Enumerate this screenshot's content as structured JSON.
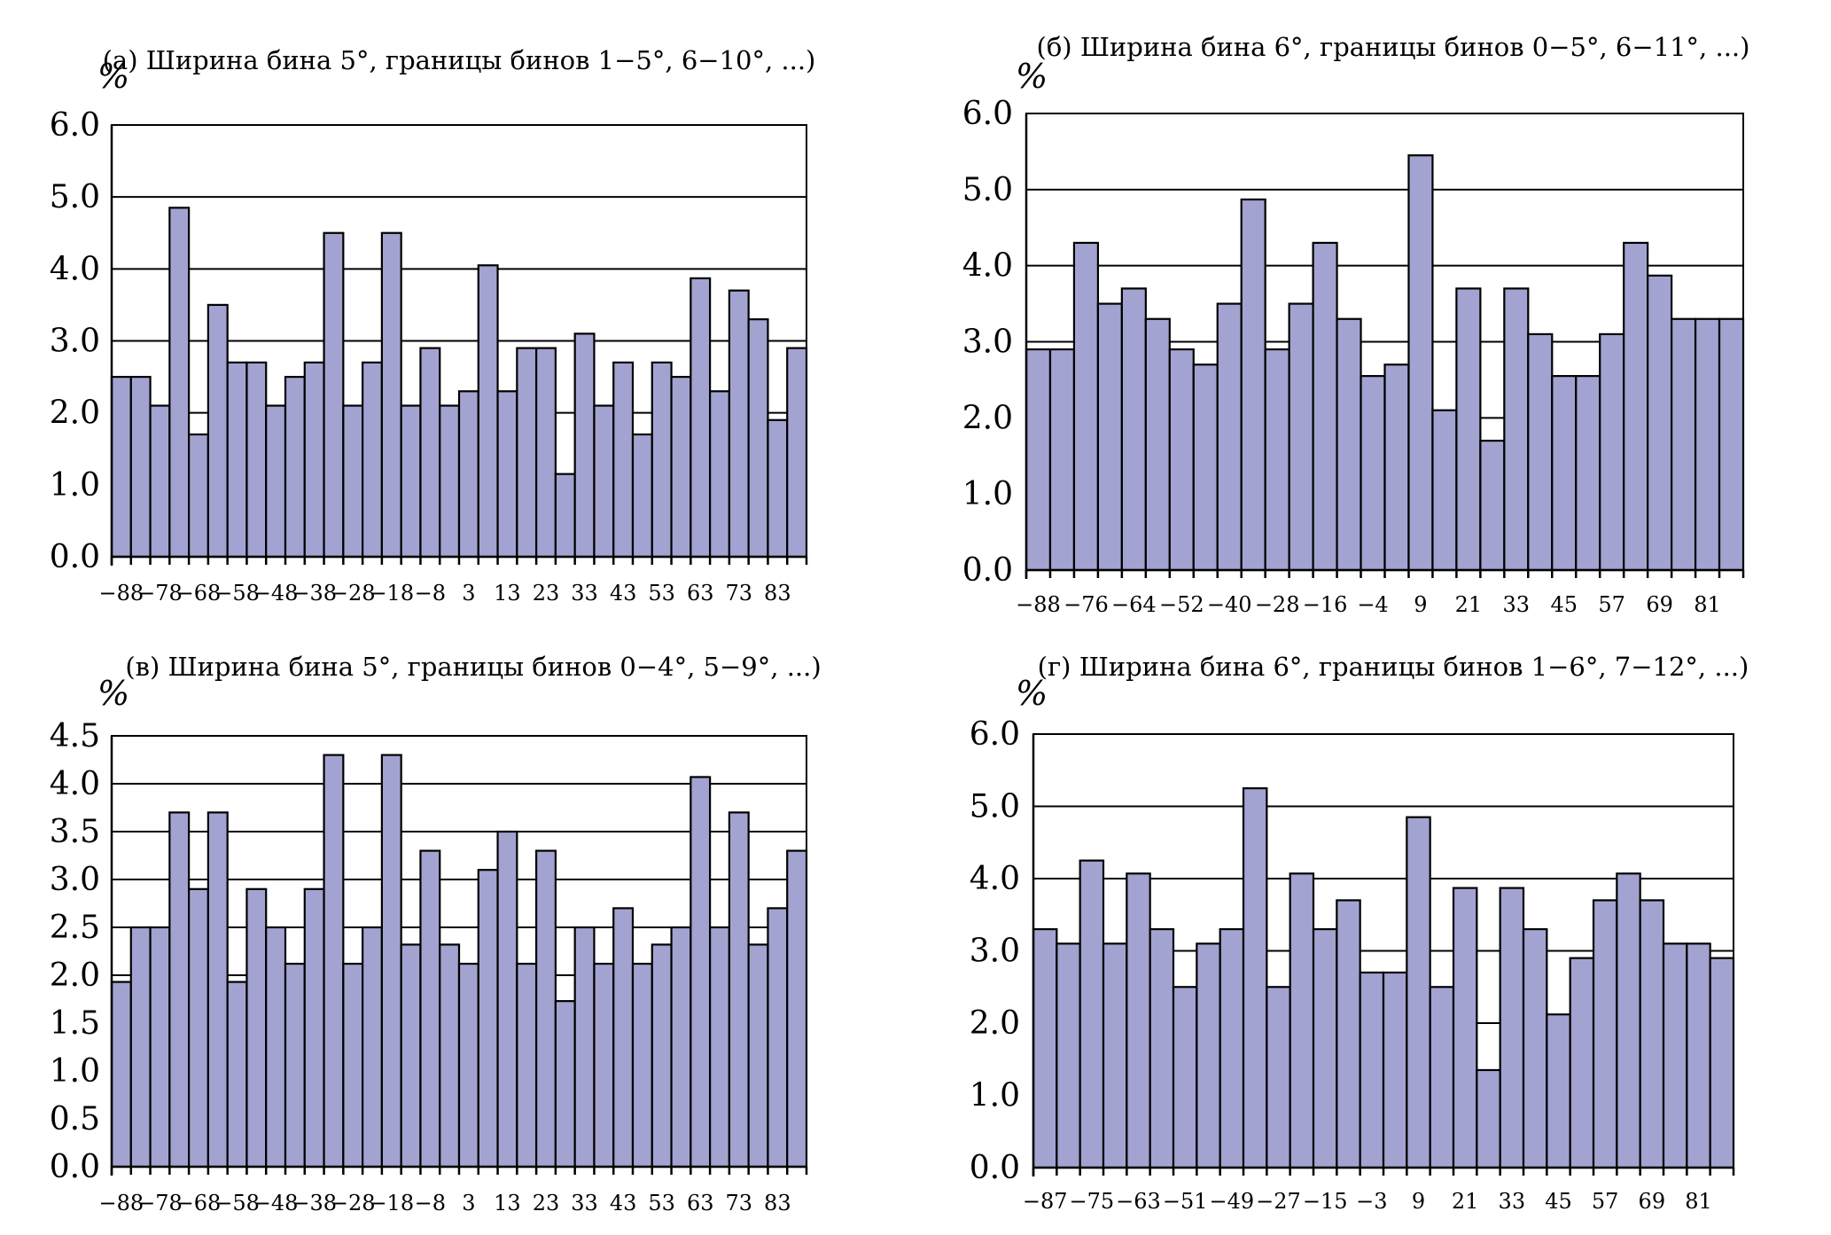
{
  "chart_data": [
    {
      "type": "bar",
      "title": "(а) Ширина бина 5°, границы бинов 1−5°, 6−10°, ...)",
      "ylabel": "%",
      "ylim": [
        0,
        6
      ],
      "yticks": [
        "0.0",
        "1.0",
        "2.0",
        "3.0",
        "4.0",
        "5.0",
        "6.0"
      ],
      "grid": true,
      "xtick_labels": [
        "−88",
        "−78",
        "−68",
        "−58",
        "−48",
        "−38",
        "−28",
        "−18",
        "−8",
        "3",
        "13",
        "23",
        "33",
        "43",
        "53",
        "63",
        "73",
        "83"
      ],
      "values": [
        2.5,
        2.5,
        2.1,
        4.85,
        1.7,
        3.5,
        2.7,
        2.7,
        2.1,
        2.5,
        2.7,
        4.5,
        2.1,
        2.7,
        4.5,
        2.1,
        2.9,
        2.1,
        2.3,
        4.05,
        2.3,
        2.9,
        2.9,
        1.15,
        3.1,
        2.1,
        2.7,
        1.7,
        2.7,
        2.5,
        3.87,
        2.3,
        3.7,
        3.3,
        1.9,
        2.9
      ]
    },
    {
      "type": "bar",
      "title": "(б) Ширина бина 6°, границы бинов 0−5°, 6−11°, ...)",
      "ylabel": "%",
      "ylim": [
        0,
        6
      ],
      "yticks": [
        "0.0",
        "1.0",
        "2.0",
        "3.0",
        "4.0",
        "5.0",
        "6.0"
      ],
      "grid": true,
      "xtick_labels": [
        "−88",
        "−76",
        "−64",
        "−52",
        "−40",
        "−28",
        "−16",
        "−4",
        "9",
        "21",
        "33",
        "45",
        "57",
        "69",
        "81"
      ],
      "values": [
        2.9,
        2.9,
        4.3,
        3.5,
        3.7,
        3.3,
        2.9,
        2.7,
        3.5,
        4.87,
        2.9,
        3.5,
        4.3,
        3.3,
        2.55,
        2.7,
        5.45,
        2.1,
        3.7,
        1.7,
        3.7,
        3.1,
        2.55,
        2.55,
        3.1,
        4.3,
        3.87,
        3.3,
        3.3,
        3.3
      ]
    },
    {
      "type": "bar",
      "title": "(в) Ширина бина 5°, границы бинов 0−4°, 5−9°, ...)",
      "ylabel": "%",
      "ylim": [
        0,
        4.5
      ],
      "yticks": [
        "0.0",
        "0.5",
        "1.0",
        "1.5",
        "2.0",
        "2.5",
        "3.0",
        "3.5",
        "4.0",
        "4.5"
      ],
      "grid": true,
      "xtick_labels": [
        "−88",
        "−78",
        "−68",
        "−58",
        "−48",
        "−38",
        "−28",
        "−18",
        "−8",
        "3",
        "13",
        "23",
        "33",
        "43",
        "53",
        "63",
        "73",
        "83"
      ],
      "values": [
        1.93,
        2.5,
        2.5,
        3.7,
        2.9,
        3.7,
        1.93,
        2.9,
        2.5,
        2.12,
        2.9,
        4.3,
        2.12,
        2.5,
        4.3,
        2.32,
        3.3,
        2.32,
        2.12,
        3.1,
        3.5,
        2.12,
        3.3,
        1.73,
        2.5,
        2.12,
        2.7,
        2.12,
        2.32,
        2.5,
        4.07,
        2.5,
        3.7,
        2.32,
        2.7,
        3.3
      ]
    },
    {
      "type": "bar",
      "title": "(г) Ширина бина 6°, границы бинов 1−6°, 7−12°, ...)",
      "ylabel": "%",
      "ylim": [
        0,
        6
      ],
      "yticks": [
        "0.0",
        "1.0",
        "2.0",
        "3.0",
        "4.0",
        "5.0",
        "6.0"
      ],
      "grid": true,
      "xtick_labels": [
        "−87",
        "−75",
        "−63",
        "−51",
        "−49",
        "−27",
        "−15",
        "−3",
        "9",
        "21",
        "33",
        "45",
        "57",
        "69",
        "81"
      ],
      "values": [
        3.3,
        3.1,
        4.25,
        3.1,
        4.07,
        3.3,
        2.5,
        3.1,
        3.3,
        5.25,
        2.5,
        4.07,
        3.3,
        3.7,
        2.7,
        2.7,
        4.85,
        2.5,
        3.87,
        1.35,
        3.87,
        3.3,
        2.12,
        2.9,
        3.7,
        4.07,
        3.7,
        3.1,
        3.1,
        2.9
      ]
    }
  ]
}
